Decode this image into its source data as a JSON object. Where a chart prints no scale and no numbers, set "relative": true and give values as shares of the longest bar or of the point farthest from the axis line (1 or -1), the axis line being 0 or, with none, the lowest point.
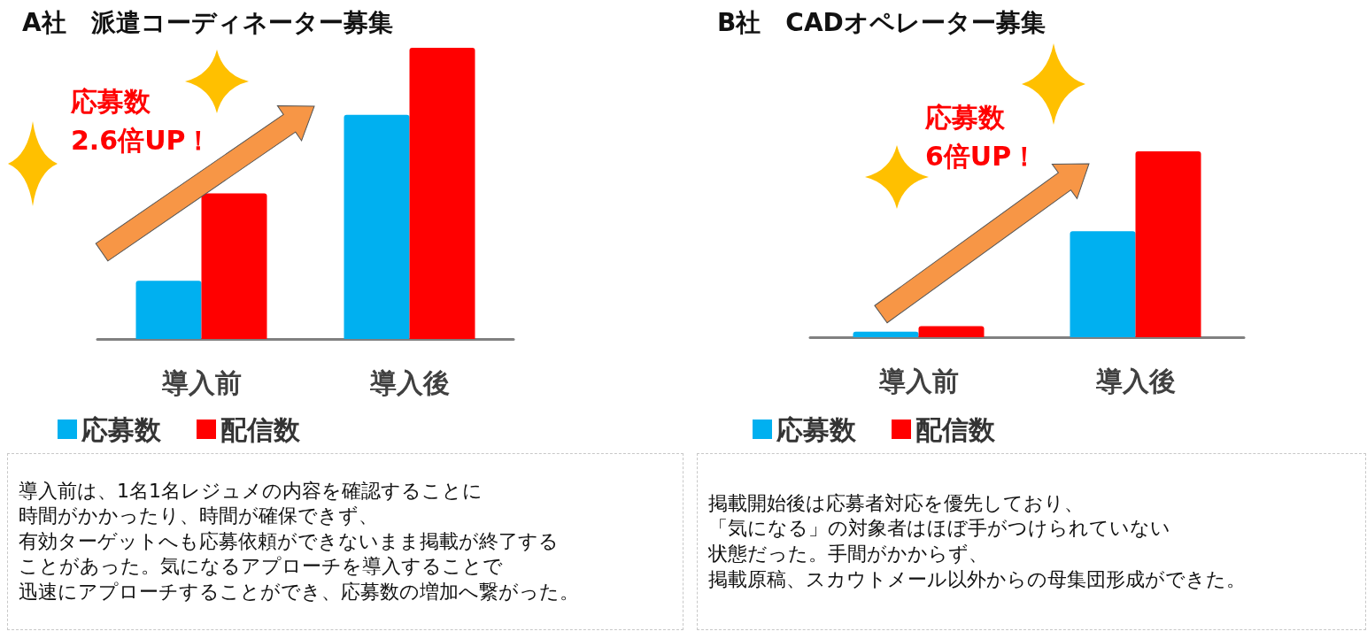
{
  "chart_data": [
    {
      "type": "bar",
      "title": "A社　派遣コーディネーター募集",
      "categories": [
        "導入前",
        "導入後"
      ],
      "relative": true,
      "legend": "bottom",
      "annotations": [
        "応募数\n2.6倍UP！",
        "導入前は、1名1名レジュメの内容を確認することに",
        "時間がかかったり、時間が確保できず、",
        "有効ターゲットへも応募依頼ができないまま掲載が終了する",
        "ことがあった。気になるアプローチを導入することで",
        "迅速にアプローチすることができ、応募数の増加へ繋がった。"
      ],
      "series": [
        {
          "name": "応募数",
          "color": "#00b0f0",
          "values": [
            0.2,
            0.77
          ]
        },
        {
          "name": "配信数",
          "color": "#ff0000",
          "values": [
            0.5,
            1
          ]
        }
      ]
    },
    {
      "type": "bar",
      "title": "B社　CADオペレーター募集",
      "categories": [
        "導入前",
        "導入後"
      ],
      "relative": true,
      "legend": "bottom",
      "annotations": [
        "応募数\n6倍UP！",
        "掲載開始後は応募者対応を優先しており、",
        "「気になる」の対象者はほぼ手がつけられていない",
        "状態だった。手間がかからず、",
        "掲載原稿、スカウトメール以外からの母集団形成ができた。"
      ],
      "series": [
        {
          "name": "応募数",
          "color": "#00b0f0",
          "values": [
            0.03,
            0.57
          ]
        },
        {
          "name": "配信数",
          "color": "#ff0000",
          "values": [
            0.06,
            1
          ]
        }
      ]
    }
  ]
}
